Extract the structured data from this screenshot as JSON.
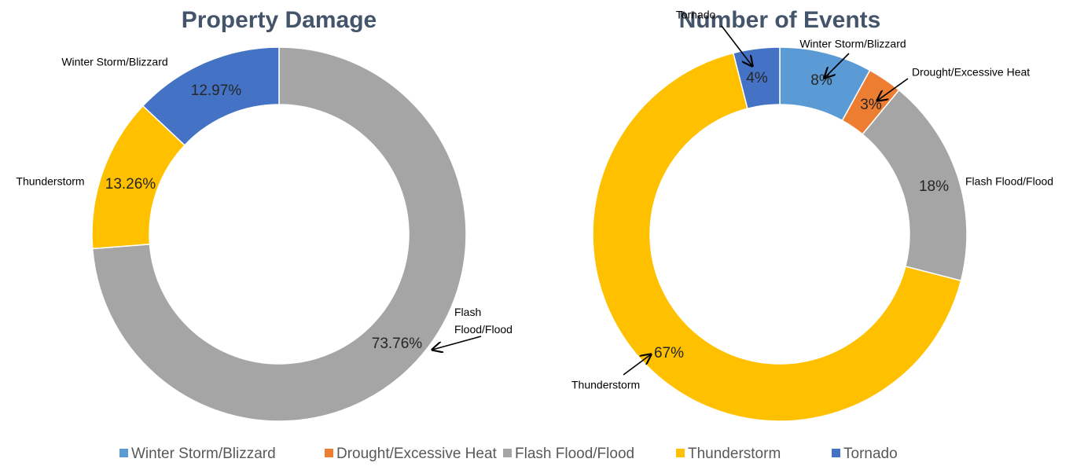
{
  "chart_data": [
    {
      "type": "donut",
      "title": "Property Damage",
      "categories": [
        "Flash Flood/Flood",
        "Thunderstorm",
        "Winter Storm/Blizzard"
      ],
      "values": [
        73.76,
        13.26,
        12.97
      ],
      "value_labels": [
        "73.76%",
        "13.26%",
        "12.97%"
      ],
      "colors": [
        "#a5a5a5",
        "#ffc000",
        "#4472c4"
      ]
    },
    {
      "type": "donut",
      "title": "Number of Events",
      "categories": [
        "Winter Storm/Blizzard",
        "Drought/Excessive Heat",
        "Flash Flood/Flood",
        "Thunderstorm",
        "Tornado"
      ],
      "values": [
        8,
        3,
        18,
        67,
        4
      ],
      "value_labels": [
        "8%",
        "3%",
        "18%",
        "67%",
        "4%"
      ],
      "colors": [
        "#5b9bd5",
        "#ed7d31",
        "#a5a5a5",
        "#ffc000",
        "#4472c4"
      ]
    }
  ]
}
